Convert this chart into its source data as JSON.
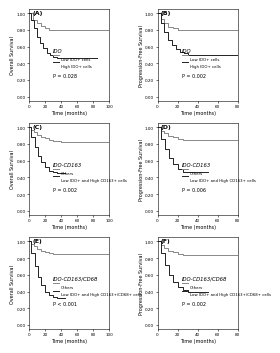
{
  "panels": [
    {
      "label": "(A)",
      "title": "IDO",
      "ylabel": "Overall Survival",
      "xlabel": "Time (months)",
      "pvalue": "P = 0.028",
      "xlim": [
        0,
        100
      ],
      "ylim": [
        -0.05,
        1.05
      ],
      "xticks": [
        0,
        20,
        40,
        60,
        80,
        100
      ],
      "legend": [
        "— Low IDO+ cells",
        "— High IDO+ cells"
      ],
      "curve1_color": "#888888",
      "curve2_color": "#222222",
      "curve1": {
        "x": [
          0,
          5,
          10,
          15,
          20,
          25,
          30,
          40,
          50,
          60,
          70,
          80,
          90,
          100
        ],
        "y": [
          1.0,
          0.92,
          0.88,
          0.85,
          0.82,
          0.8,
          0.8,
          0.8,
          0.8,
          0.8,
          0.8,
          0.8,
          0.8,
          0.8
        ]
      },
      "curve2": {
        "x": [
          0,
          3,
          6,
          10,
          14,
          18,
          22,
          26,
          30,
          35,
          40,
          50,
          60,
          70,
          80,
          85
        ],
        "y": [
          1.0,
          0.92,
          0.82,
          0.72,
          0.65,
          0.58,
          0.52,
          0.5,
          0.48,
          0.47,
          0.47,
          0.47,
          0.47,
          0.47,
          0.47,
          0.47
        ]
      }
    },
    {
      "label": "(B)",
      "title": "IDO",
      "ylabel": "Progression-Free Survival",
      "xlabel": "Time (months)",
      "pvalue": "P = 0.002",
      "xlim": [
        0,
        80
      ],
      "ylim": [
        -0.05,
        1.05
      ],
      "xticks": [
        0,
        20,
        40,
        60,
        80
      ],
      "legend": [
        "— Low IDO+ cells",
        "— High IDO+ cells"
      ],
      "curve1_color": "#888888",
      "curve2_color": "#222222",
      "curve1": {
        "x": [
          0,
          3,
          6,
          10,
          15,
          20,
          25,
          30,
          40,
          50,
          60,
          70,
          80
        ],
        "y": [
          1.0,
          0.93,
          0.88,
          0.84,
          0.82,
          0.8,
          0.8,
          0.8,
          0.8,
          0.8,
          0.8,
          0.8,
          0.8
        ]
      },
      "curve2": {
        "x": [
          0,
          3,
          6,
          10,
          14,
          18,
          22,
          26,
          30,
          40,
          50,
          60,
          70,
          80
        ],
        "y": [
          1.0,
          0.88,
          0.78,
          0.68,
          0.62,
          0.57,
          0.54,
          0.52,
          0.5,
          0.5,
          0.5,
          0.5,
          0.5,
          0.5
        ]
      }
    },
    {
      "label": "(C)",
      "title": "IDO-CD163",
      "ylabel": "Overall Survival",
      "xlabel": "Time (months)",
      "pvalue": "P = 0.002",
      "xlim": [
        0,
        100
      ],
      "ylim": [
        -0.05,
        1.05
      ],
      "xticks": [
        0,
        20,
        40,
        60,
        80,
        100
      ],
      "legend": [
        "— Others",
        "— Low IDO+ and High CD163+ cells"
      ],
      "curve1_color": "#888888",
      "curve2_color": "#222222",
      "curve1": {
        "x": [
          0,
          3,
          6,
          10,
          15,
          20,
          25,
          30,
          40,
          50,
          60,
          70,
          80,
          90,
          100
        ],
        "y": [
          1.0,
          0.97,
          0.94,
          0.91,
          0.89,
          0.87,
          0.85,
          0.84,
          0.83,
          0.83,
          0.83,
          0.83,
          0.83,
          0.83,
          0.83
        ]
      },
      "curve2": {
        "x": [
          0,
          3,
          7,
          11,
          15,
          20,
          25,
          30,
          35,
          40,
          45
        ],
        "y": [
          1.0,
          0.88,
          0.76,
          0.66,
          0.58,
          0.52,
          0.48,
          0.46,
          0.45,
          0.45,
          0.45
        ]
      }
    },
    {
      "label": "(D)",
      "title": "IDO-CD163",
      "ylabel": "Progression-Free Survival",
      "xlabel": "Time (months)",
      "pvalue": "P = 0.006",
      "xlim": [
        0,
        80
      ],
      "ylim": [
        -0.05,
        1.05
      ],
      "xticks": [
        0,
        20,
        40,
        60,
        80
      ],
      "legend": [
        "— Others",
        "— Low IDO+ and High CD163+ cells"
      ],
      "curve1_color": "#888888",
      "curve2_color": "#222222",
      "curve1": {
        "x": [
          0,
          3,
          6,
          10,
          15,
          20,
          25,
          30,
          40,
          50,
          60,
          70,
          80
        ],
        "y": [
          1.0,
          0.96,
          0.93,
          0.9,
          0.88,
          0.86,
          0.85,
          0.85,
          0.85,
          0.85,
          0.85,
          0.85,
          0.85
        ]
      },
      "curve2": {
        "x": [
          0,
          3,
          7,
          11,
          15,
          20,
          25,
          30,
          35,
          40,
          50
        ],
        "y": [
          1.0,
          0.86,
          0.74,
          0.63,
          0.56,
          0.5,
          0.47,
          0.46,
          0.46,
          0.46,
          0.46
        ]
      }
    },
    {
      "label": "(E)",
      "title": "IDO-CD163/CD68",
      "ylabel": "Overall Survival",
      "xlabel": "Time (months)",
      "pvalue": "P < 0.001",
      "xlim": [
        0,
        100
      ],
      "ylim": [
        -0.05,
        1.05
      ],
      "xticks": [
        0,
        20,
        40,
        60,
        80,
        100
      ],
      "legend": [
        "— Others",
        "— Low IDO+ and High CD163+/CD68+ cells"
      ],
      "curve1_color": "#888888",
      "curve2_color": "#222222",
      "curve1": {
        "x": [
          0,
          3,
          6,
          10,
          15,
          20,
          25,
          30,
          40,
          50,
          60,
          70,
          80,
          90,
          100
        ],
        "y": [
          1.0,
          0.97,
          0.94,
          0.91,
          0.89,
          0.87,
          0.86,
          0.85,
          0.85,
          0.85,
          0.85,
          0.85,
          0.85,
          0.85,
          0.85
        ]
      },
      "curve2": {
        "x": [
          0,
          3,
          7,
          11,
          15,
          20,
          25,
          30,
          35,
          40,
          45
        ],
        "y": [
          1.0,
          0.86,
          0.7,
          0.58,
          0.48,
          0.4,
          0.36,
          0.33,
          0.32,
          0.32,
          0.32
        ]
      }
    },
    {
      "label": "(F)",
      "title": "IDO-CD163/CD68",
      "ylabel": "Progression-Free Survival",
      "xlabel": "Time (months)",
      "pvalue": "P = 0.002",
      "xlim": [
        0,
        80
      ],
      "ylim": [
        -0.05,
        1.05
      ],
      "xticks": [
        0,
        20,
        40,
        60,
        80
      ],
      "legend": [
        "— Others",
        "— Low IDO+ and High CD163+/CD68+ cells"
      ],
      "curve1_color": "#888888",
      "curve2_color": "#222222",
      "curve1": {
        "x": [
          0,
          3,
          6,
          10,
          15,
          20,
          25,
          30,
          40,
          50,
          60,
          70,
          80
        ],
        "y": [
          1.0,
          0.96,
          0.92,
          0.89,
          0.87,
          0.85,
          0.84,
          0.84,
          0.84,
          0.84,
          0.84,
          0.84,
          0.84
        ]
      },
      "curve2": {
        "x": [
          0,
          3,
          7,
          11,
          15,
          20,
          25,
          30,
          35,
          40,
          50
        ],
        "y": [
          1.0,
          0.86,
          0.72,
          0.6,
          0.52,
          0.46,
          0.42,
          0.4,
          0.4,
          0.4,
          0.4
        ]
      }
    }
  ],
  "yticks": [
    0.0,
    0.2,
    0.4,
    0.6,
    0.8,
    1.0
  ],
  "ytick_labels": [
    "0.00",
    "0.20",
    "0.40",
    "0.60",
    "0.80",
    "1.00"
  ]
}
